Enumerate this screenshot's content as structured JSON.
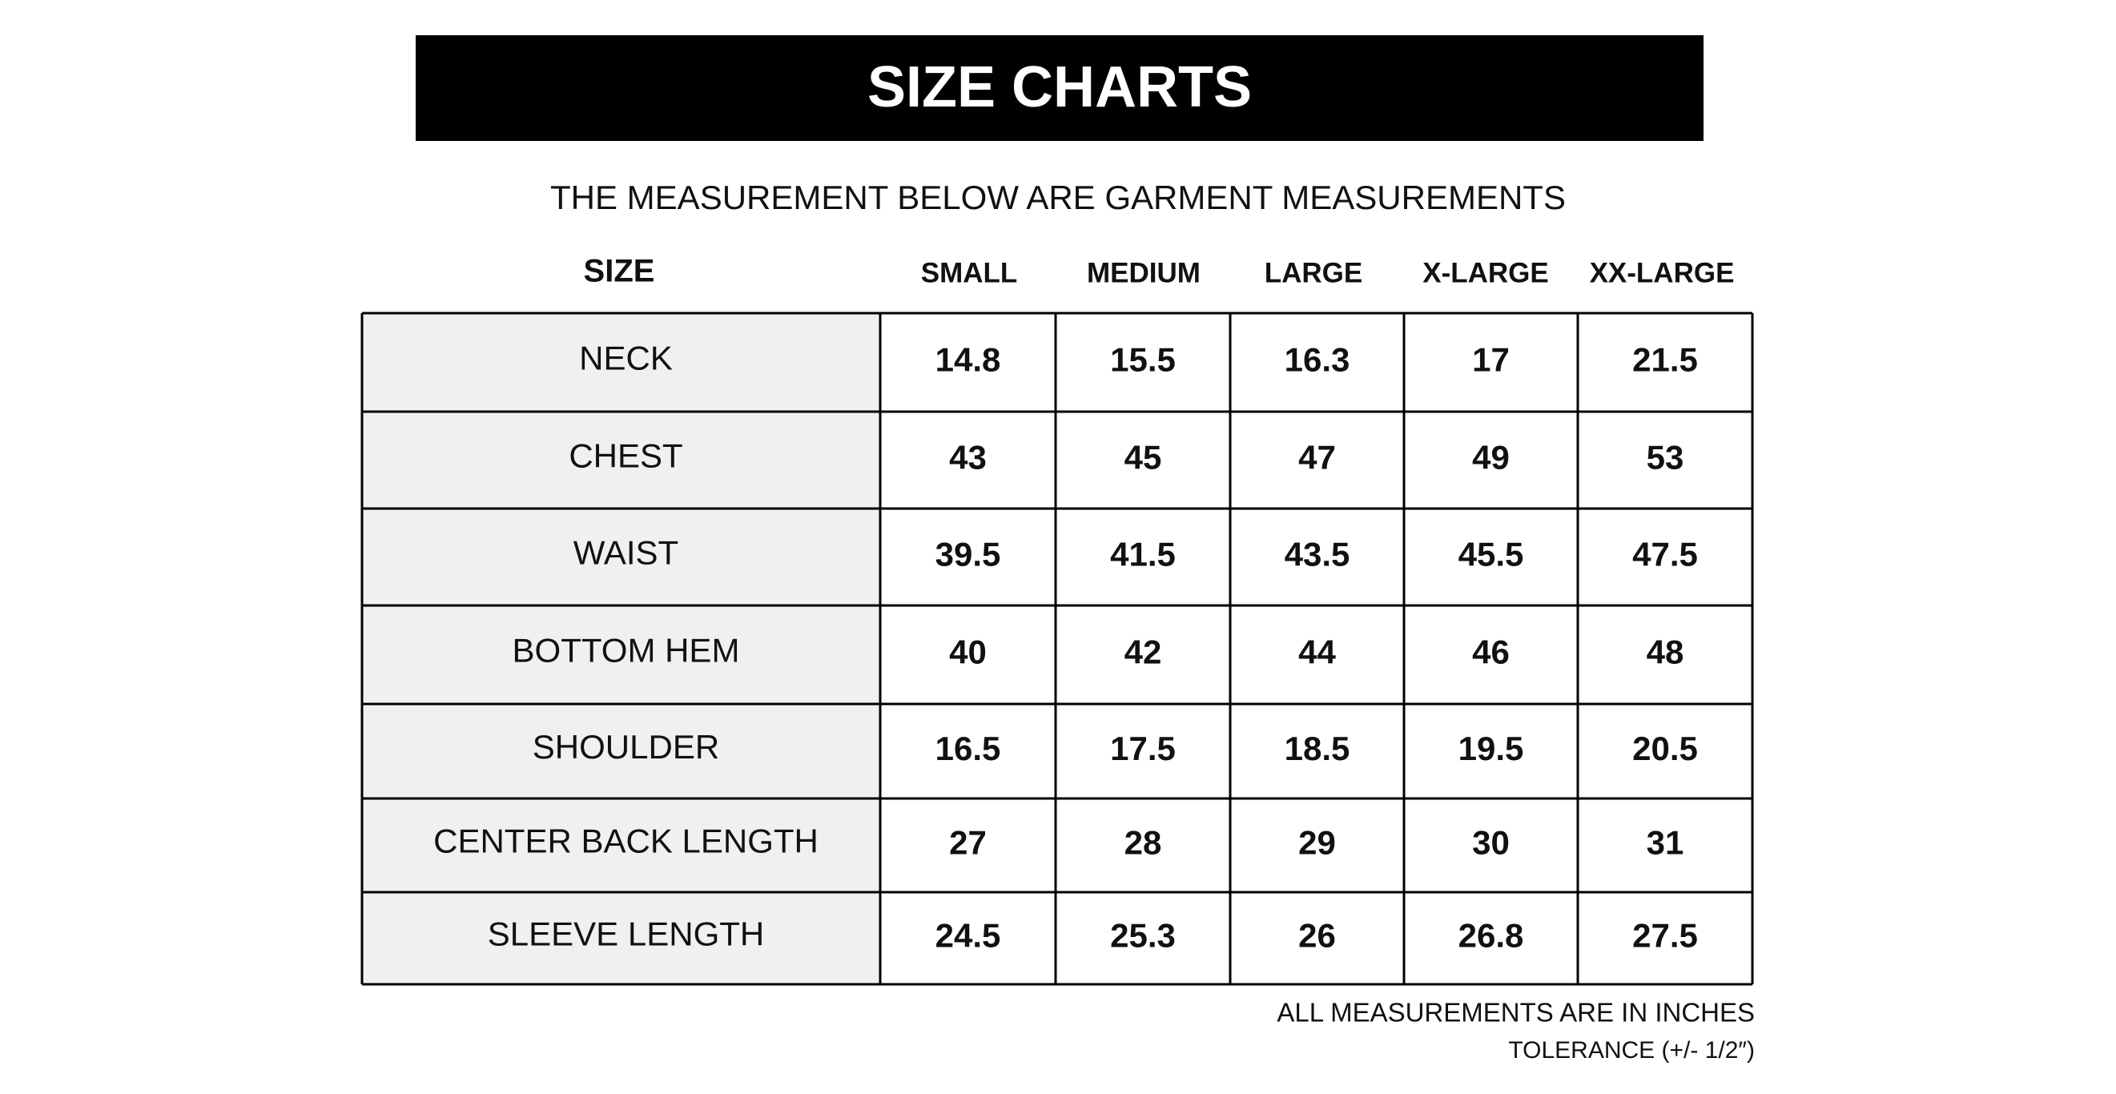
{
  "header": {
    "title": "SIZE CHARTS",
    "subtitle": "THE MEASUREMENT BELOW ARE GARMENT MEASUREMENTS"
  },
  "table": {
    "columns": [
      "SIZE",
      "SMALL",
      "MEDIUM",
      "LARGE",
      "X-LARGE",
      "XX-LARGE"
    ],
    "rows": [
      {
        "label": "NECK",
        "values": [
          "14.8",
          "15.5",
          "16.3",
          "17",
          "21.5"
        ]
      },
      {
        "label": "CHEST",
        "values": [
          "43",
          "45",
          "47",
          "49",
          "53"
        ]
      },
      {
        "label": "WAIST",
        "values": [
          "39.5",
          "41.5",
          "43.5",
          "45.5",
          "47.5"
        ]
      },
      {
        "label": "BOTTOM HEM",
        "values": [
          "40",
          "42",
          "44",
          "46",
          "48"
        ]
      },
      {
        "label": "SHOULDER",
        "values": [
          "16.5",
          "17.5",
          "18.5",
          "19.5",
          "20.5"
        ]
      },
      {
        "label": "CENTER BACK LENGTH",
        "values": [
          "27",
          "28",
          "29",
          "30",
          "31"
        ]
      },
      {
        "label": "SLEEVE LENGTH",
        "values": [
          "24.5",
          "25.3",
          "26",
          "26.8",
          "27.5"
        ]
      }
    ]
  },
  "footer": {
    "note": "ALL MEASUREMENTS ARE IN INCHES",
    "tolerance": "TOLERANCE (+/- 1/2″)"
  }
}
